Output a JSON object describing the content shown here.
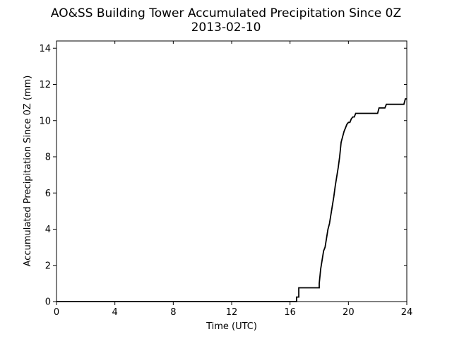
{
  "chart_data": {
    "type": "line",
    "title": "AO&SS Building Tower Accumulated Precipitation Since 0Z",
    "subtitle": "2013-02-10",
    "xlabel": "Time (UTC)",
    "ylabel": "Accumulated Precipitation Since 0Z (mm)",
    "xlim": [
      0,
      24
    ],
    "ylim": [
      0,
      14.4
    ],
    "x_ticks": [
      0,
      4,
      8,
      12,
      16,
      20,
      24
    ],
    "y_ticks": [
      0,
      2,
      4,
      6,
      8,
      10,
      12,
      14
    ],
    "x_tick_labels": [
      "0",
      "4",
      "8",
      "12",
      "16",
      "20",
      "24"
    ],
    "y_tick_labels": [
      "0",
      "2",
      "4",
      "6",
      "8",
      "10",
      "12",
      "14"
    ],
    "grid": false,
    "line_color": "#000000",
    "series": [
      {
        "x": [
          0,
          16.45,
          16.45,
          16.6,
          16.6,
          16.75,
          16.75,
          18.0,
          18.0,
          18.1,
          18.2,
          18.3,
          18.4,
          18.5,
          18.6,
          18.7,
          18.8,
          18.9,
          19.0,
          19.1,
          19.2,
          19.3,
          19.4,
          19.5,
          19.6,
          19.7,
          19.8,
          19.9,
          20.0,
          20.1,
          20.2,
          20.3,
          20.4,
          20.5,
          20.6,
          20.7,
          20.8,
          21.0,
          21.1,
          22.0,
          22.1,
          22.5,
          22.6,
          23.8,
          23.9,
          24.0
        ],
        "y": [
          0,
          0,
          0.25,
          0.25,
          0.76,
          0.76,
          0.76,
          0.76,
          1.0,
          1.8,
          2.3,
          2.8,
          3.0,
          3.5,
          4.0,
          4.3,
          4.8,
          5.3,
          5.8,
          6.4,
          6.9,
          7.4,
          8.0,
          8.8,
          9.1,
          9.4,
          9.6,
          9.8,
          9.9,
          9.9,
          10.1,
          10.2,
          10.2,
          10.4,
          10.4,
          10.4,
          10.4,
          10.4,
          10.4,
          10.4,
          10.7,
          10.7,
          10.9,
          10.9,
          11.2,
          11.2
        ]
      }
    ]
  }
}
